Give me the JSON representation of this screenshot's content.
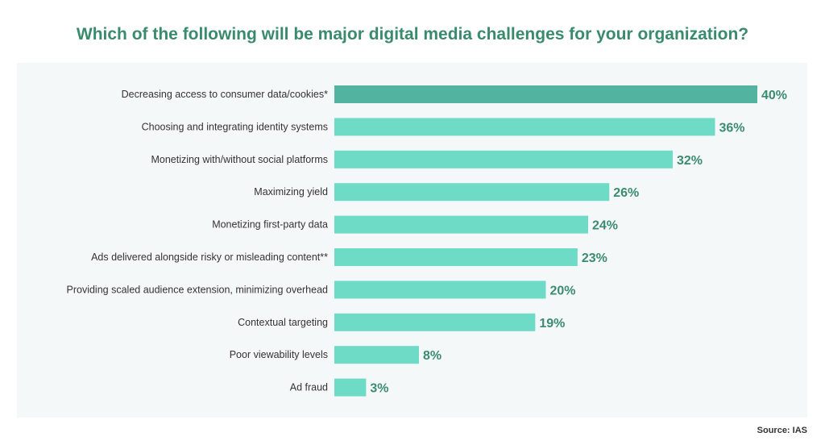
{
  "chart_data": {
    "type": "bar",
    "orientation": "horizontal",
    "title": "Which of the following will be major digital media challenges for your organization?",
    "categories": [
      "Decreasing access to consumer data/cookies*",
      "Choosing and integrating identity systems",
      "Monetizing with/without social platforms",
      "Maximizing yield",
      "Monetizing first-party data",
      "Ads delivered alongside risky or misleading content**",
      "Providing scaled audience extension, minimizing overhead",
      "Contextual targeting",
      "Poor viewability levels",
      "Ad fraud"
    ],
    "values": [
      40,
      36,
      32,
      26,
      24,
      23,
      20,
      19,
      8,
      3
    ],
    "value_labels": [
      "40%",
      "36%",
      "32%",
      "26%",
      "24%",
      "23%",
      "20%",
      "19%",
      "8%",
      "3%"
    ],
    "highlighted_index": 0,
    "xlim": [
      0,
      40
    ],
    "grid": false,
    "source": "Source: IAS",
    "colors": {
      "title": "#3a8a6e",
      "highlight_bar": "#52b3a0",
      "bar": "#6edbc6",
      "value_label": "#3b8c6f",
      "category_label": "#333333",
      "panel": "#f5f8f9"
    }
  }
}
